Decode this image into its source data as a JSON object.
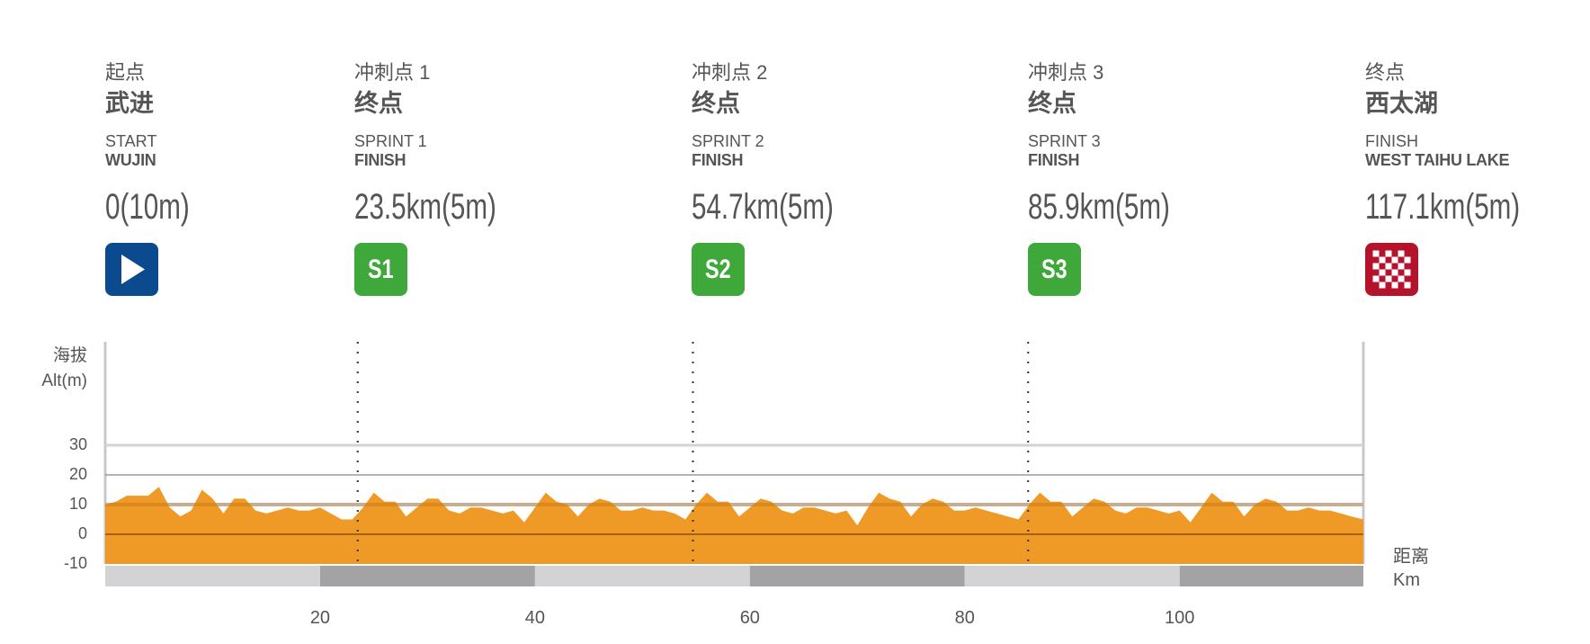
{
  "points": [
    {
      "zh_type": "起点",
      "zh_name": "武进",
      "en_type": "START",
      "en_name": "WUJIN",
      "distance": "0(10m)",
      "icon": "start-play-icon",
      "badge_text": "",
      "color": "#0b4a8e"
    },
    {
      "zh_type": "冲刺点 1",
      "zh_name": "终点",
      "en_type": "SPRINT 1",
      "en_name": "FINISH",
      "distance": "23.5km(5m)",
      "icon": "sprint-icon",
      "badge_text": "S1",
      "color": "#3fa83b"
    },
    {
      "zh_type": "冲刺点 2",
      "zh_name": "终点",
      "en_type": "SPRINT 2",
      "en_name": "FINISH",
      "distance": "54.7km(5m)",
      "icon": "sprint-icon",
      "badge_text": "S2",
      "color": "#3fa83b"
    },
    {
      "zh_type": "冲刺点 3",
      "zh_name": "终点",
      "en_type": "SPRINT 3",
      "en_name": "FINISH",
      "distance": "85.9km(5m)",
      "icon": "sprint-icon",
      "badge_text": "S3",
      "color": "#3fa83b"
    },
    {
      "zh_type": "终点",
      "zh_name": "西太湖",
      "en_type": "FINISH",
      "en_name": "WEST TAIHU LAKE",
      "distance": "117.1km(5m)",
      "icon": "checkered-flag-icon",
      "badge_text": "",
      "color": "#b5122b"
    }
  ],
  "chart_data": {
    "type": "area",
    "ylabel_zh": "海拔",
    "ylabel": "Alt(m)",
    "xlabel_zh": "距离",
    "xlabel": "Km",
    "xlim": [
      0,
      117.1
    ],
    "ylim": [
      -10,
      30
    ],
    "yticks": [
      "30",
      "20",
      "10",
      "0",
      "-10"
    ],
    "xticks": [
      "20",
      "40",
      "60",
      "80",
      "100"
    ],
    "marker_km": [
      23.5,
      54.7,
      85.9
    ],
    "fill_color": "#ef9a26",
    "x": [
      0,
      1,
      2,
      3,
      4,
      5,
      6,
      7,
      8,
      9,
      10,
      11,
      12,
      13,
      14,
      15,
      16,
      17,
      18,
      19,
      20,
      21,
      22,
      23,
      24,
      25,
      26,
      27,
      28,
      29,
      30,
      31,
      32,
      33,
      34,
      35,
      36,
      37,
      38,
      39,
      40,
      41,
      42,
      43,
      44,
      45,
      46,
      47,
      48,
      49,
      50,
      51,
      52,
      53,
      54,
      55,
      56,
      57,
      58,
      59,
      60,
      61,
      62,
      63,
      64,
      65,
      66,
      67,
      68,
      69,
      70,
      71,
      72,
      73,
      74,
      75,
      76,
      77,
      78,
      79,
      80,
      81,
      82,
      83,
      84,
      85,
      86,
      87,
      88,
      89,
      90,
      91,
      92,
      93,
      94,
      95,
      96,
      97,
      98,
      99,
      100,
      101,
      102,
      103,
      104,
      105,
      106,
      107,
      108,
      109,
      110,
      111,
      112,
      113,
      114,
      115,
      116,
      117.1
    ],
    "elevation_m": [
      10,
      11,
      13,
      13,
      13,
      16,
      9,
      6,
      8,
      15,
      12,
      7,
      12,
      12,
      8,
      7,
      8,
      9,
      8,
      8,
      9,
      7,
      5,
      5,
      9,
      14,
      11,
      11,
      6,
      9,
      12,
      12,
      8,
      7,
      9,
      9,
      8,
      7,
      8,
      4,
      9,
      14,
      11,
      10,
      6,
      10,
      12,
      11,
      8,
      8,
      9,
      8,
      8,
      7,
      5,
      10,
      14,
      11,
      11,
      6,
      9,
      12,
      11,
      8,
      7,
      9,
      9,
      8,
      7,
      8,
      3,
      9,
      14,
      12,
      11,
      6,
      10,
      12,
      11,
      8,
      8,
      9,
      8,
      7,
      6,
      5,
      10,
      14,
      11,
      11,
      6,
      9,
      12,
      11,
      8,
      7,
      9,
      9,
      8,
      7,
      8,
      4,
      9,
      14,
      11,
      11,
      6,
      10,
      12,
      11,
      8,
      8,
      9,
      8,
      8,
      7,
      6,
      5
    ]
  }
}
